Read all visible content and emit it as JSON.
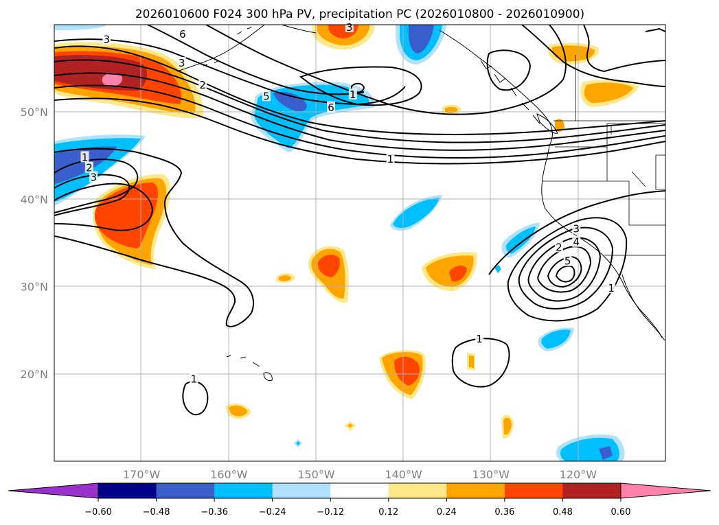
{
  "chart_data": {
    "type": "heatmap",
    "title": "2026010600 F024 300 hPa PV, precipitation PC (2026010800 - 2026010900)",
    "map": {
      "lon_range": [
        -180,
        -110
      ],
      "lat_range": [
        10,
        60
      ],
      "xticks": [
        -170,
        -160,
        -150,
        -140,
        -130,
        -120
      ],
      "xtick_labels": [
        "170°W",
        "160°W",
        "150°W",
        "140°W",
        "130°W",
        "120°W"
      ],
      "yticks": [
        20,
        30,
        40,
        50
      ],
      "ytick_labels": [
        "20°N",
        "30°N",
        "40°N",
        "50°N"
      ],
      "grid": true
    },
    "colorbar": {
      "levels": [
        -0.6,
        -0.48,
        -0.36,
        -0.24,
        -0.12,
        0.12,
        0.24,
        0.36,
        0.48,
        0.6
      ],
      "tick_labels": [
        "−0.60",
        "−0.48",
        "−0.36",
        "−0.24",
        "−0.12",
        "0.12",
        "0.24",
        "0.36",
        "0.48",
        "0.60"
      ],
      "colors": [
        "#9932cc",
        "#00008b",
        "#3a5fcd",
        "#00bfff",
        "#b0e2ff",
        "#ffffff",
        "#ffe88a",
        "#ffa500",
        "#ff4500",
        "#b22222",
        "#ff82ab"
      ],
      "extend": "both"
    },
    "contour_labels": [
      {
        "text": "3",
        "lon": -174,
        "lat": 58.3
      },
      {
        "text": "6",
        "lon": -165.3,
        "lat": 58.9
      },
      {
        "text": "3",
        "lon": -146.2,
        "lat": 59.7
      },
      {
        "text": "3",
        "lon": -165.4,
        "lat": 55.6
      },
      {
        "text": "2",
        "lon": -163,
        "lat": 53.1
      },
      {
        "text": "5",
        "lon": -155.7,
        "lat": 51.8
      },
      {
        "text": "6",
        "lon": -148.3,
        "lat": 50.5
      },
      {
        "text": "1",
        "lon": -145.8,
        "lat": 52
      },
      {
        "text": "1",
        "lon": -141.5,
        "lat": 44.6
      },
      {
        "text": "1",
        "lon": -176.5,
        "lat": 44.8
      },
      {
        "text": "2",
        "lon": -176,
        "lat": 43.6
      },
      {
        "text": "3",
        "lon": -175.5,
        "lat": 42.5
      },
      {
        "text": "3",
        "lon": -120.2,
        "lat": 36.6
      },
      {
        "text": "4",
        "lon": -120.2,
        "lat": 35.1
      },
      {
        "text": "2",
        "lon": -122.2,
        "lat": 34.5
      },
      {
        "text": "5",
        "lon": -121.2,
        "lat": 32.9
      },
      {
        "text": "1",
        "lon": -116.2,
        "lat": 29.8
      },
      {
        "text": "1",
        "lon": -131.3,
        "lat": 24
      },
      {
        "text": "1",
        "lon": -164,
        "lat": 19.4
      }
    ]
  }
}
